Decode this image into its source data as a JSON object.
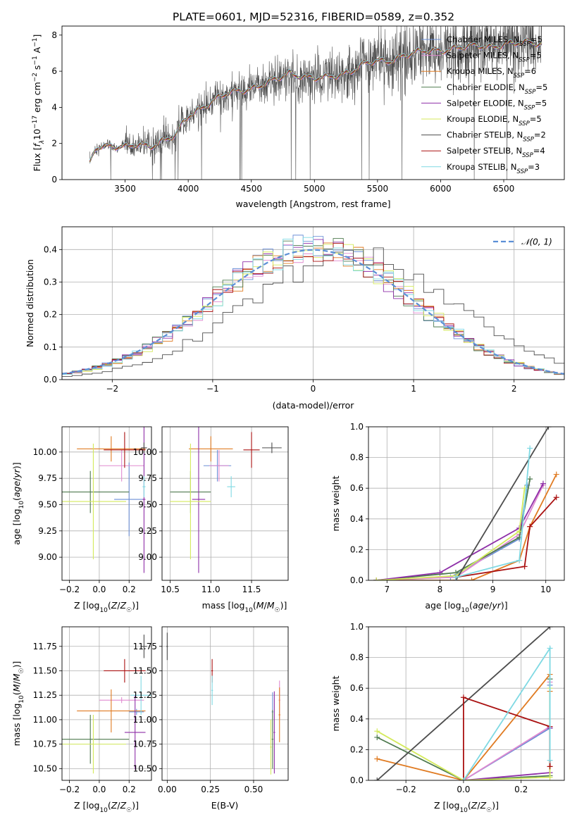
{
  "title": "PLATE=0601, MJD=52316, FIBERID=0589, z=0.352",
  "colors": {
    "Chabrier MILES": "#6b8fd6",
    "Salpeter MILES": "#e08ad0",
    "Kroupa MILES": "#e07b22",
    "Chabrier ELODIE": "#4f7a4f",
    "Salpeter ELODIE": "#8e2fa8",
    "Kroupa ELODIE": "#d4ea5c",
    "Chabrier STELIB": "#4d4d4d",
    "Salpeter STELIB": "#aa1111",
    "Kroupa STELIB": "#7fd9e3",
    "normal": "#5b8fd6"
  },
  "chart_data": [
    {
      "id": "spectrum",
      "type": "line",
      "xlabel": "wavelength [Angstrom, rest frame]",
      "ylabel": "Flux [f_λ 10^-17 erg cm^-2 s^-1 A^-1]",
      "xlim": [
        3000,
        6980
      ],
      "ylim": [
        0,
        8.5
      ],
      "xticks": [
        3500,
        4000,
        4500,
        5000,
        5500,
        6000,
        6500
      ],
      "yticks": [
        0,
        2,
        4,
        6,
        8
      ],
      "grid": false,
      "legend_position": "top-right",
      "legend": [
        {
          "label": "Chabrier MILES, N",
          "sub": "SSP",
          "tail": "=5"
        },
        {
          "label": "Salpeter MILES, N",
          "sub": "SSP",
          "tail": "=5"
        },
        {
          "label": "Kroupa MILES, N",
          "sub": "SSP",
          "tail": "=6"
        },
        {
          "label": "Chabrier ELODIE, N",
          "sub": "SSP",
          "tail": "=5"
        },
        {
          "label": "Salpeter ELODIE, N",
          "sub": "SSP",
          "tail": "=5"
        },
        {
          "label": "Kroupa ELODIE, N",
          "sub": "SSP",
          "tail": "=5"
        },
        {
          "label": "Chabrier STELIB, N",
          "sub": "SSP",
          "tail": "=2"
        },
        {
          "label": "Salpeter STELIB, N",
          "sub": "SSP",
          "tail": "=4"
        },
        {
          "label": "Kroupa STELIB, N",
          "sub": "SSP",
          "tail": "=3"
        }
      ],
      "continuum": {
        "x": [
          3220,
          3260,
          3300,
          3400,
          3500,
          3600,
          3700,
          3800,
          3900,
          3950,
          4000,
          4100,
          4200,
          4300,
          4400,
          4500,
          4600,
          4700,
          4800,
          4900,
          5000,
          5100,
          5200,
          5300,
          5400,
          5500,
          5600,
          5700,
          5800,
          5900,
          6000,
          6100,
          6200,
          6300,
          6400,
          6500,
          6600,
          6700,
          6800
        ],
        "y": [
          0.8,
          1.7,
          1.9,
          1.9,
          1.75,
          1.9,
          1.9,
          2.2,
          2.4,
          3.0,
          3.5,
          4.0,
          4.4,
          4.7,
          4.9,
          5.1,
          5.3,
          5.5,
          5.9,
          5.8,
          5.6,
          5.6,
          5.8,
          6.1,
          6.4,
          6.5,
          6.6,
          6.9,
          7.0,
          7.1,
          7.2,
          7.3,
          7.3,
          7.4,
          7.4,
          7.5,
          7.5,
          7.6,
          7.6
        ]
      }
    },
    {
      "id": "residuals",
      "type": "histogram",
      "xlabel": "(data-model)/error",
      "ylabel": "Normed distribution",
      "xlim": [
        -2.5,
        2.5
      ],
      "ylim": [
        0,
        0.47
      ],
      "xticks": [
        -2,
        -1,
        0,
        1,
        2
      ],
      "yticks": [
        0.0,
        0.1,
        0.2,
        0.3,
        0.4
      ],
      "grid": true,
      "legend_position": "top-right",
      "normal_label": "𝒩(0, 1)",
      "normal": {
        "mu": 0,
        "sigma": 1
      }
    },
    {
      "id": "age-vs-Z",
      "type": "scatter",
      "xlabel": "Z [log₁₀(Z/Z☉)]",
      "ylabel": "age  [log₁₀(age/yr)]",
      "xlim": [
        -0.25,
        0.35
      ],
      "ylim": [
        8.78,
        10.24
      ],
      "xticks": [
        -0.2,
        0.0,
        0.2
      ],
      "yticks": [
        9.0,
        9.25,
        9.5,
        9.75,
        10.0
      ],
      "grid": true,
      "points": [
        {
          "model": "Chabrier MILES",
          "x": 0.2,
          "xerr": 0.1,
          "y": 9.55,
          "yerr": 0.35
        },
        {
          "model": "Salpeter MILES",
          "x": 0.15,
          "xerr": 0.15,
          "y": 9.87,
          "yerr": 0.15
        },
        {
          "model": "Kroupa MILES",
          "x": 0.08,
          "xerr": 0.23,
          "y": 10.03,
          "yerr": 0.12
        },
        {
          "model": "Chabrier ELODIE",
          "x": -0.06,
          "xerr": 0.26,
          "y": 9.62,
          "yerr": 0.2
        },
        {
          "model": "Salpeter ELODIE",
          "x": 0.3,
          "xerr": 0.01,
          "y": 9.55,
          "yerr": 0.7
        },
        {
          "model": "Kroupa ELODIE",
          "x": -0.04,
          "xerr": 0.22,
          "y": 9.53,
          "yerr": 0.55
        },
        {
          "model": "Chabrier STELIB",
          "x": 0.3,
          "xerr": 0.02,
          "y": 10.04,
          "yerr": 0.05
        },
        {
          "model": "Salpeter STELIB",
          "x": 0.17,
          "xerr": 0.14,
          "y": 10.02,
          "yerr": 0.17
        },
        {
          "model": "Kroupa STELIB",
          "x": 0.3,
          "xerr": 0.01,
          "y": 9.67,
          "yerr": 0.1
        }
      ]
    },
    {
      "id": "age-vs-mass",
      "type": "scatter",
      "xlabel": "mass [log₁₀(M/M☉)]",
      "ylabel": "",
      "xlim": [
        10.4,
        11.95
      ],
      "ylim": [
        8.78,
        10.24
      ],
      "xticks": [
        10.5,
        11.0,
        11.5
      ],
      "yticks": [
        9.0,
        9.25,
        9.5,
        9.75,
        10.0
      ],
      "grid": true,
      "points": [
        {
          "model": "Chabrier MILES",
          "x": 11.08,
          "xerr": 0.17,
          "y": 9.87,
          "yerr": 0.15
        },
        {
          "model": "Salpeter MILES",
          "x": 11.1,
          "xerr": 0.12,
          "y": 9.87,
          "yerr": 0.15
        },
        {
          "model": "Kroupa MILES",
          "x": 11.0,
          "xerr": 0.27,
          "y": 10.03,
          "yerr": 0.12
        },
        {
          "model": "Chabrier ELODIE",
          "x": 10.75,
          "xerr": 0.25,
          "y": 9.62,
          "yerr": 0.2
        },
        {
          "model": "Salpeter ELODIE",
          "x": 10.85,
          "xerr": 0.08,
          "y": 9.55,
          "yerr": 0.7
        },
        {
          "model": "Kroupa ELODIE",
          "x": 10.75,
          "xerr": 0.25,
          "y": 9.53,
          "yerr": 0.55
        },
        {
          "model": "Chabrier STELIB",
          "x": 11.75,
          "xerr": 0.12,
          "y": 10.04,
          "yerr": 0.05
        },
        {
          "model": "Salpeter STELIB",
          "x": 11.5,
          "xerr": 0.1,
          "y": 10.02,
          "yerr": 0.17
        },
        {
          "model": "Kroupa STELIB",
          "x": 11.25,
          "xerr": 0.05,
          "y": 9.67,
          "yerr": 0.1
        }
      ]
    },
    {
      "id": "mass-weight-vs-age",
      "type": "line",
      "xlabel": "age  [log₁₀(age/yr)]",
      "ylabel": "mass weight",
      "xlim": [
        6.65,
        10.35
      ],
      "ylim": [
        0,
        1.0
      ],
      "xticks": [
        7,
        8,
        9,
        10
      ],
      "yticks": [
        0.0,
        0.2,
        0.4,
        0.6,
        0.8,
        1.0
      ],
      "grid": true,
      "series": [
        {
          "model": "Chabrier MILES",
          "x": [
            6.8,
            8.2,
            9.5,
            9.65
          ],
          "y": [
            0.0,
            0.02,
            0.27,
            0.62
          ]
        },
        {
          "model": "Salpeter MILES",
          "x": [
            6.8,
            8.3,
            9.5,
            9.95
          ],
          "y": [
            0.0,
            0.02,
            0.3,
            0.62
          ]
        },
        {
          "model": "Kroupa MILES",
          "x": [
            6.8,
            8.6,
            9.5,
            9.7,
            10.2
          ],
          "y": [
            0.0,
            0.0,
            0.13,
            0.35,
            0.69
          ]
        },
        {
          "model": "Chabrier ELODIE",
          "x": [
            6.8,
            8.3,
            9.5,
            9.7
          ],
          "y": [
            0.0,
            0.05,
            0.28,
            0.66
          ]
        },
        {
          "model": "Salpeter ELODIE",
          "x": [
            6.8,
            8.0,
            9.5,
            9.95
          ],
          "y": [
            0.0,
            0.05,
            0.34,
            0.63
          ]
        },
        {
          "model": "Kroupa ELODIE",
          "x": [
            6.8,
            8.3,
            9.5,
            9.6
          ],
          "y": [
            0.0,
            0.03,
            0.32,
            0.6
          ]
        },
        {
          "model": "Chabrier STELIB",
          "x": [
            8.3,
            10.05
          ],
          "y": [
            0.0,
            1.0
          ]
        },
        {
          "model": "Salpeter STELIB",
          "x": [
            8.3,
            9.6,
            9.7,
            10.2
          ],
          "y": [
            0.02,
            0.09,
            0.35,
            0.54
          ]
        },
        {
          "model": "Kroupa STELIB",
          "x": [
            8.3,
            9.5,
            9.7
          ],
          "y": [
            0.02,
            0.13,
            0.86
          ]
        }
      ]
    },
    {
      "id": "mass-vs-Z",
      "type": "scatter",
      "xlabel": "Z [log₁₀(Z/Z☉)]",
      "ylabel": "mass [log₁₀(M/M☉)]",
      "xlim": [
        -0.25,
        0.35
      ],
      "ylim": [
        10.38,
        11.95
      ],
      "xticks": [
        -0.2,
        0.0,
        0.2
      ],
      "yticks": [
        10.5,
        10.75,
        11.0,
        11.25,
        11.5,
        11.75
      ],
      "grid": true,
      "points": [
        {
          "model": "Chabrier MILES",
          "x": 0.25,
          "xerr": 0.05,
          "y": 11.08,
          "yerr": 0.03
        },
        {
          "model": "Salpeter MILES",
          "x": 0.15,
          "xerr": 0.15,
          "y": 11.2,
          "yerr": 0.03
        },
        {
          "model": "Kroupa MILES",
          "x": 0.08,
          "xerr": 0.23,
          "y": 11.09,
          "yerr": 0.22
        },
        {
          "model": "Chabrier ELODIE",
          "x": -0.06,
          "xerr": 0.26,
          "y": 10.8,
          "yerr": 0.25
        },
        {
          "model": "Salpeter ELODIE",
          "x": 0.24,
          "xerr": 0.07,
          "y": 10.87,
          "yerr": 0.38
        },
        {
          "model": "Kroupa ELODIE",
          "x": -0.04,
          "xerr": 0.22,
          "y": 10.75,
          "yerr": 0.3
        },
        {
          "model": "Chabrier STELIB",
          "x": 0.3,
          "xerr": 0.02,
          "y": 11.75,
          "yerr": 0.12
        },
        {
          "model": "Salpeter STELIB",
          "x": 0.17,
          "xerr": 0.14,
          "y": 11.5,
          "yerr": 0.12
        },
        {
          "model": "Kroupa STELIB",
          "x": 0.28,
          "xerr": 0.07,
          "y": 11.25,
          "yerr": 0.2
        }
      ]
    },
    {
      "id": "mass-vs-ebv",
      "type": "scatter",
      "xlabel": "E(B-V)",
      "ylabel": "",
      "xlim": [
        -0.03,
        0.7
      ],
      "ylim": [
        10.38,
        11.95
      ],
      "xticks": [
        0.0,
        0.25,
        0.5
      ],
      "yticks": [
        10.5,
        10.75,
        11.0,
        11.25,
        11.5,
        11.75
      ],
      "grid": true,
      "points": [
        {
          "model": "Chabrier MILES",
          "x": 0.61,
          "xerr": 0.005,
          "y": 11.08,
          "yerr": 0.2
        },
        {
          "model": "Salpeter MILES",
          "x": 0.65,
          "xerr": 0.005,
          "y": 11.2,
          "yerr": 0.2
        },
        {
          "model": "Kroupa MILES",
          "x": 0.65,
          "xerr": 0.005,
          "y": 11.05,
          "yerr": 0.28
        },
        {
          "model": "Chabrier ELODIE",
          "x": 0.61,
          "xerr": 0.005,
          "y": 10.8,
          "yerr": 0.3
        },
        {
          "model": "Salpeter ELODIE",
          "x": 0.62,
          "xerr": 0.005,
          "y": 10.87,
          "yerr": 0.42
        },
        {
          "model": "Kroupa ELODIE",
          "x": 0.6,
          "xerr": 0.005,
          "y": 10.72,
          "yerr": 0.28
        },
        {
          "model": "Chabrier STELIB",
          "x": 0.0,
          "xerr": 0.005,
          "y": 11.75,
          "yerr": 0.14
        },
        {
          "model": "Salpeter STELIB",
          "x": 0.26,
          "xerr": 0.005,
          "y": 11.5,
          "yerr": 0.12
        },
        {
          "model": "Kroupa STELIB",
          "x": 0.26,
          "xerr": 0.005,
          "y": 11.3,
          "yerr": 0.15
        }
      ]
    },
    {
      "id": "mass-weight-vs-Z",
      "type": "line",
      "xlabel": "Z [log₁₀(Z/Z☉)]",
      "ylabel": "mass weight",
      "xlim": [
        -0.33,
        0.35
      ],
      "ylim": [
        0,
        1.0
      ],
      "xticks": [
        -0.2,
        0.0,
        0.2
      ],
      "yticks": [
        0.0,
        0.2,
        0.4,
        0.6,
        0.8,
        1.0
      ],
      "grid": true,
      "series": [
        {
          "model": "Chabrier MILES",
          "x": [
            0.0,
            0.3,
            0.3
          ],
          "y": [
            0.0,
            0.34,
            0.62
          ]
        },
        {
          "model": "Salpeter MILES",
          "x": [
            0.0,
            0.3,
            0.3
          ],
          "y": [
            0.0,
            0.35,
            0.64
          ]
        },
        {
          "model": "Kroupa MILES",
          "x": [
            -0.3,
            0.0,
            0.3,
            0.3
          ],
          "y": [
            0.14,
            0.0,
            0.69,
            0.58
          ]
        },
        {
          "model": "Chabrier ELODIE",
          "x": [
            -0.3,
            0.0,
            0.3,
            0.3
          ],
          "y": [
            0.28,
            0.0,
            0.03,
            0.66
          ]
        },
        {
          "model": "Salpeter ELODIE",
          "x": [
            0.0,
            0.3,
            0.3
          ],
          "y": [
            0.0,
            0.05,
            0.34
          ]
        },
        {
          "model": "Kroupa ELODIE",
          "x": [
            -0.3,
            0.0,
            0.3,
            0.3
          ],
          "y": [
            0.32,
            0.0,
            0.02,
            0.6
          ]
        },
        {
          "model": "Chabrier STELIB",
          "x": [
            -0.3,
            0.3
          ],
          "y": [
            0.0,
            1.0
          ]
        },
        {
          "model": "Salpeter STELIB",
          "x": [
            0.0,
            0.0,
            0.3,
            0.3
          ],
          "y": [
            0.0,
            0.54,
            0.35,
            0.09
          ]
        },
        {
          "model": "Kroupa STELIB",
          "x": [
            0.0,
            0.3,
            0.3
          ],
          "y": [
            0.0,
            0.86,
            0.13
          ]
        }
      ]
    }
  ]
}
